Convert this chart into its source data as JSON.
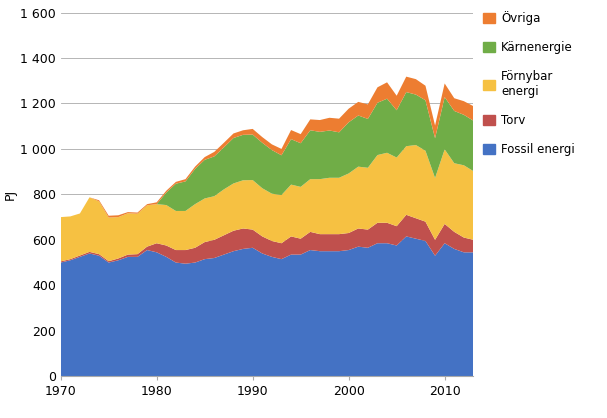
{
  "years": [
    1970,
    1971,
    1972,
    1973,
    1974,
    1975,
    1976,
    1977,
    1978,
    1979,
    1980,
    1981,
    1982,
    1983,
    1984,
    1985,
    1986,
    1987,
    1988,
    1989,
    1990,
    1991,
    1992,
    1993,
    1994,
    1995,
    1996,
    1997,
    1998,
    1999,
    2000,
    2001,
    2002,
    2003,
    2004,
    2005,
    2006,
    2007,
    2008,
    2009,
    2010,
    2011,
    2012,
    2013
  ],
  "fossil_energi": [
    500,
    510,
    525,
    540,
    530,
    500,
    510,
    525,
    525,
    555,
    545,
    525,
    500,
    495,
    500,
    515,
    520,
    535,
    550,
    560,
    565,
    540,
    525,
    515,
    535,
    535,
    555,
    550,
    550,
    550,
    555,
    570,
    565,
    585,
    585,
    575,
    615,
    605,
    595,
    530,
    585,
    560,
    545,
    545
  ],
  "torv": [
    5,
    5,
    6,
    7,
    7,
    6,
    8,
    10,
    12,
    15,
    40,
    50,
    55,
    60,
    65,
    75,
    80,
    85,
    90,
    90,
    80,
    75,
    70,
    70,
    80,
    70,
    80,
    75,
    75,
    75,
    75,
    80,
    80,
    90,
    90,
    85,
    95,
    90,
    85,
    70,
    85,
    75,
    65,
    55
  ],
  "fornybar_energi": [
    195,
    188,
    185,
    240,
    232,
    192,
    182,
    182,
    178,
    182,
    172,
    178,
    172,
    172,
    192,
    192,
    192,
    202,
    208,
    212,
    218,
    212,
    208,
    212,
    228,
    228,
    232,
    242,
    248,
    248,
    262,
    272,
    272,
    298,
    308,
    302,
    302,
    322,
    312,
    272,
    328,
    302,
    318,
    302
  ],
  "karnenergie": [
    0,
    0,
    0,
    0,
    0,
    0,
    0,
    0,
    0,
    0,
    0,
    55,
    120,
    130,
    155,
    170,
    175,
    185,
    200,
    200,
    200,
    200,
    192,
    175,
    200,
    192,
    215,
    208,
    208,
    200,
    225,
    225,
    215,
    230,
    238,
    208,
    238,
    222,
    222,
    175,
    230,
    230,
    222,
    222
  ],
  "ovriga": [
    0,
    0,
    0,
    0,
    5,
    8,
    8,
    5,
    5,
    5,
    8,
    8,
    8,
    10,
    10,
    12,
    20,
    20,
    20,
    20,
    25,
    25,
    25,
    28,
    40,
    40,
    48,
    52,
    56,
    60,
    60,
    60,
    64,
    68,
    72,
    64,
    68,
    68,
    64,
    56,
    60,
    56,
    60,
    64
  ],
  "colors": {
    "fossil_energi": "#4472C4",
    "torv": "#C0504D",
    "fornybar_energi": "#F6C142",
    "karnenergie": "#70AD47",
    "ovriga": "#ED7D31"
  },
  "ylabel": "PJ",
  "ylim": [
    0,
    1600
  ],
  "yticks": [
    0,
    200,
    400,
    600,
    800,
    1000,
    1200,
    1400,
    1600
  ],
  "ytick_labels": [
    "0",
    "200",
    "400",
    "600",
    "800",
    "1 000",
    "1 200",
    "1 400",
    "1 600"
  ],
  "xlim": [
    1970,
    2013
  ],
  "xticks": [
    1970,
    1980,
    1990,
    2000,
    2010
  ],
  "legend": [
    {
      "label": "Övriga",
      "color": "#ED7D31"
    },
    {
      "label": "Kärnenergie",
      "color": "#70AD47"
    },
    {
      "label": "Förnybar\nenergi",
      "color": "#F6C142"
    },
    {
      "label": "Torv",
      "color": "#C0504D"
    },
    {
      "label": "Fossil energi",
      "color": "#4472C4"
    }
  ],
  "background_color": "#ffffff",
  "figsize": [
    6.07,
    4.18
  ],
  "dpi": 100
}
